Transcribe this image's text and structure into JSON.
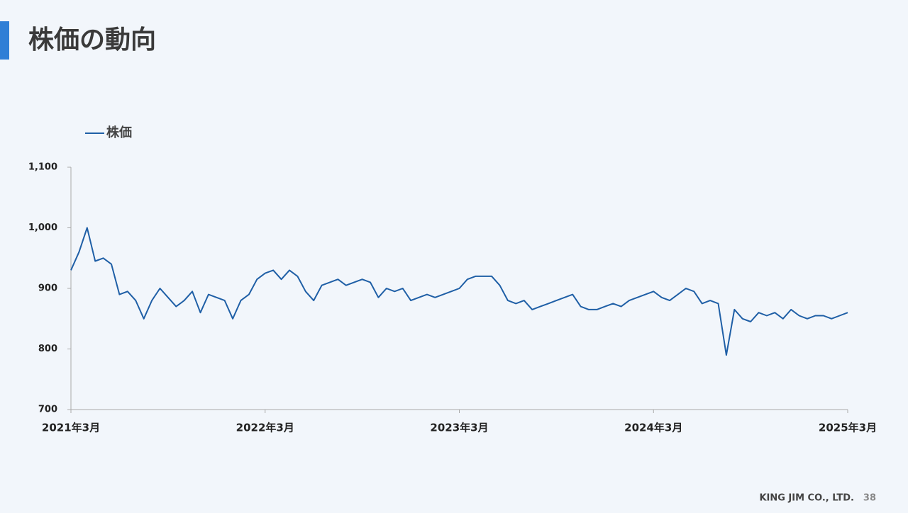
{
  "slide": {
    "title": "株価の動向",
    "footer": "KING JIM CO., LTD.",
    "page": "38"
  },
  "chart_data": {
    "type": "line",
    "categories": [
      "2021年3月",
      null,
      null,
      null,
      null,
      null,
      null,
      null,
      null,
      null,
      null,
      null,
      null,
      null,
      null,
      null,
      null,
      null,
      null,
      null,
      null,
      null,
      null,
      null,
      "2022年3月",
      null,
      null,
      null,
      null,
      null,
      null,
      null,
      null,
      null,
      null,
      null,
      null,
      null,
      null,
      null,
      null,
      null,
      null,
      null,
      null,
      null,
      null,
      null,
      "2023年3月",
      null,
      null,
      null,
      null,
      null,
      null,
      null,
      null,
      null,
      null,
      null,
      null,
      null,
      null,
      null,
      null,
      null,
      null,
      null,
      null,
      null,
      null,
      null,
      "2024年3月",
      null,
      null,
      null,
      null,
      null,
      null,
      null,
      null,
      null,
      null,
      null,
      null,
      null,
      null,
      null,
      null,
      null,
      null,
      null,
      null,
      null,
      null,
      null,
      "2025年3月"
    ],
    "series": [
      {
        "name": "株価",
        "color": "#1f5fa6",
        "values": [
          930,
          960,
          1000,
          945,
          950,
          940,
          890,
          895,
          880,
          850,
          880,
          900,
          885,
          870,
          880,
          895,
          860,
          890,
          885,
          880,
          850,
          880,
          890,
          915,
          925,
          930,
          915,
          930,
          920,
          895,
          880,
          905,
          910,
          915,
          905,
          910,
          915,
          910,
          885,
          900,
          895,
          900,
          880,
          885,
          890,
          885,
          890,
          895,
          900,
          915,
          920,
          920,
          920,
          905,
          880,
          875,
          880,
          865,
          870,
          875,
          880,
          885,
          890,
          870,
          865,
          865,
          870,
          875,
          870,
          880,
          885,
          890,
          895,
          885,
          880,
          890,
          900,
          895,
          875,
          880,
          875,
          790,
          865,
          850,
          845,
          860,
          855,
          860,
          850,
          865,
          855,
          850,
          855,
          855,
          850,
          855,
          860
        ]
      }
    ],
    "ylim": [
      700,
      1100
    ],
    "yticks": [
      700,
      800,
      900,
      {
        "value": 1000,
        "label": "1,000"
      },
      {
        "value": 1100,
        "label": "1,100"
      }
    ],
    "grid": false,
    "legend": "top-left"
  }
}
